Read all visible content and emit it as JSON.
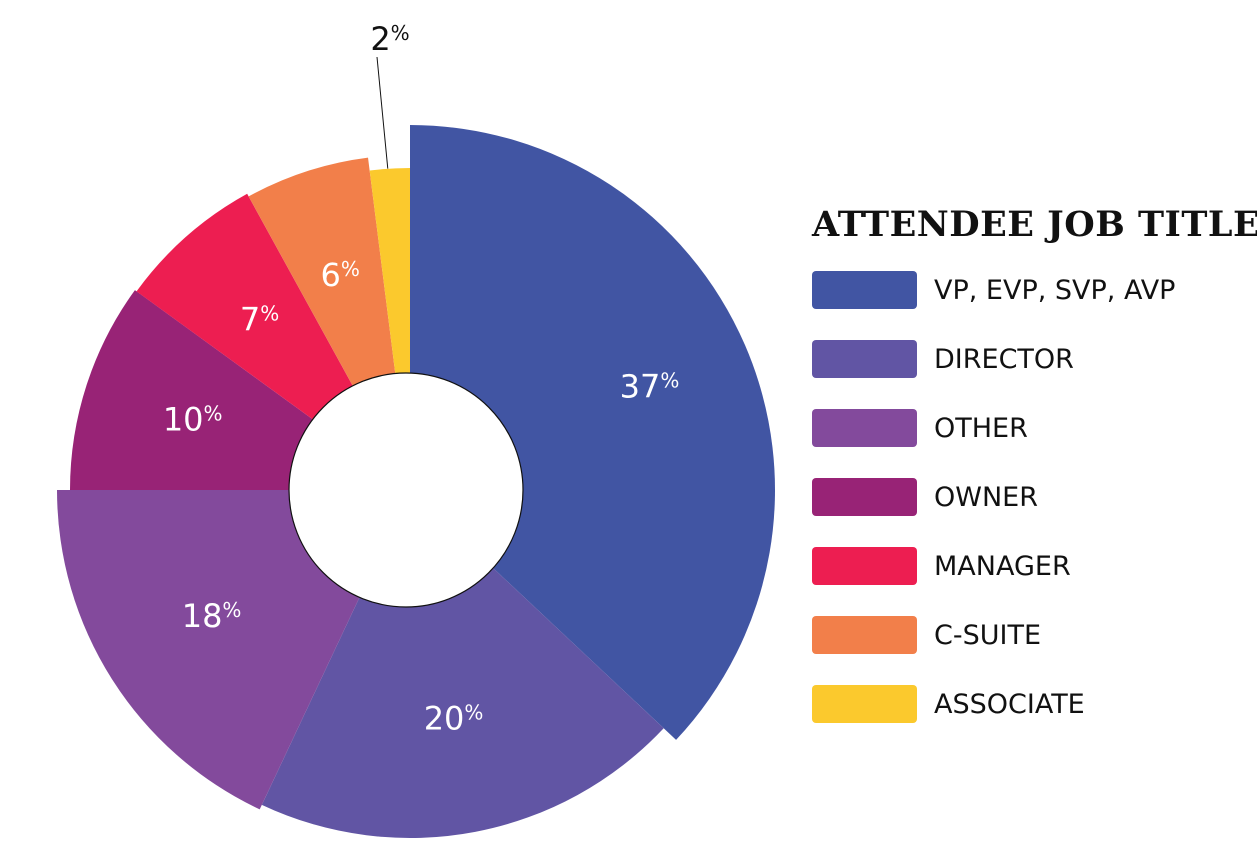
{
  "chart_data": {
    "type": "pie",
    "variant": "donut",
    "title": "ATTENDEE JOB TITLES",
    "legend_position": "right",
    "slices": [
      {
        "label": "VP, EVP, SVP, AVP",
        "value": 37,
        "display": "37",
        "color": "#4155a3"
      },
      {
        "label": "DIRECTOR",
        "value": 20,
        "display": "20",
        "color": "#6155a4"
      },
      {
        "label": "OTHER",
        "value": 18,
        "display": "18",
        "color": "#834a9c"
      },
      {
        "label": "OWNER",
        "value": 10,
        "display": "10",
        "color": "#982376"
      },
      {
        "label": "MANAGER",
        "value": 7,
        "display": "7",
        "color": "#ed1e51"
      },
      {
        "label": "C-SUITE",
        "value": 6,
        "display": "6",
        "color": "#f27f4a"
      },
      {
        "label": "ASSOCIATE",
        "value": 2,
        "display": "2",
        "color": "#fbc92d"
      }
    ],
    "percent_symbol": "%"
  }
}
